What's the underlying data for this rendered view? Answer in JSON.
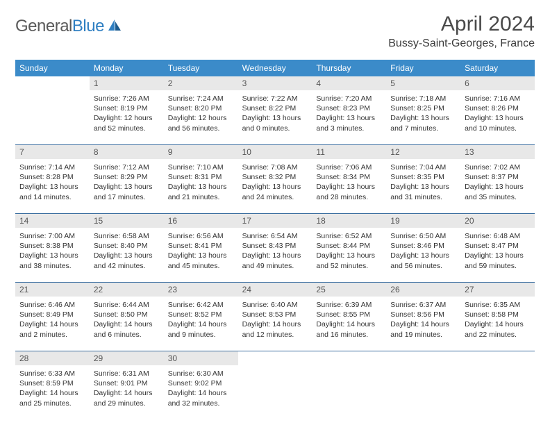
{
  "logo": {
    "text1": "General",
    "text2": "Blue"
  },
  "title": "April 2024",
  "location": "Bussy-Saint-Georges, France",
  "colors": {
    "header_bg": "#3b8bc9",
    "header_text": "#ffffff",
    "daynum_bg": "#e8e8e8",
    "week_border": "#3b6ea0",
    "logo_gray": "#5a5a5a",
    "logo_blue": "#2f7fc2"
  },
  "dayNames": [
    "Sunday",
    "Monday",
    "Tuesday",
    "Wednesday",
    "Thursday",
    "Friday",
    "Saturday"
  ],
  "weeks": [
    [
      {
        "day": "",
        "sunrise": "",
        "sunset": "",
        "daylight": ""
      },
      {
        "day": "1",
        "sunrise": "Sunrise: 7:26 AM",
        "sunset": "Sunset: 8:19 PM",
        "daylight": "Daylight: 12 hours and 52 minutes."
      },
      {
        "day": "2",
        "sunrise": "Sunrise: 7:24 AM",
        "sunset": "Sunset: 8:20 PM",
        "daylight": "Daylight: 12 hours and 56 minutes."
      },
      {
        "day": "3",
        "sunrise": "Sunrise: 7:22 AM",
        "sunset": "Sunset: 8:22 PM",
        "daylight": "Daylight: 13 hours and 0 minutes."
      },
      {
        "day": "4",
        "sunrise": "Sunrise: 7:20 AM",
        "sunset": "Sunset: 8:23 PM",
        "daylight": "Daylight: 13 hours and 3 minutes."
      },
      {
        "day": "5",
        "sunrise": "Sunrise: 7:18 AM",
        "sunset": "Sunset: 8:25 PM",
        "daylight": "Daylight: 13 hours and 7 minutes."
      },
      {
        "day": "6",
        "sunrise": "Sunrise: 7:16 AM",
        "sunset": "Sunset: 8:26 PM",
        "daylight": "Daylight: 13 hours and 10 minutes."
      }
    ],
    [
      {
        "day": "7",
        "sunrise": "Sunrise: 7:14 AM",
        "sunset": "Sunset: 8:28 PM",
        "daylight": "Daylight: 13 hours and 14 minutes."
      },
      {
        "day": "8",
        "sunrise": "Sunrise: 7:12 AM",
        "sunset": "Sunset: 8:29 PM",
        "daylight": "Daylight: 13 hours and 17 minutes."
      },
      {
        "day": "9",
        "sunrise": "Sunrise: 7:10 AM",
        "sunset": "Sunset: 8:31 PM",
        "daylight": "Daylight: 13 hours and 21 minutes."
      },
      {
        "day": "10",
        "sunrise": "Sunrise: 7:08 AM",
        "sunset": "Sunset: 8:32 PM",
        "daylight": "Daylight: 13 hours and 24 minutes."
      },
      {
        "day": "11",
        "sunrise": "Sunrise: 7:06 AM",
        "sunset": "Sunset: 8:34 PM",
        "daylight": "Daylight: 13 hours and 28 minutes."
      },
      {
        "day": "12",
        "sunrise": "Sunrise: 7:04 AM",
        "sunset": "Sunset: 8:35 PM",
        "daylight": "Daylight: 13 hours and 31 minutes."
      },
      {
        "day": "13",
        "sunrise": "Sunrise: 7:02 AM",
        "sunset": "Sunset: 8:37 PM",
        "daylight": "Daylight: 13 hours and 35 minutes."
      }
    ],
    [
      {
        "day": "14",
        "sunrise": "Sunrise: 7:00 AM",
        "sunset": "Sunset: 8:38 PM",
        "daylight": "Daylight: 13 hours and 38 minutes."
      },
      {
        "day": "15",
        "sunrise": "Sunrise: 6:58 AM",
        "sunset": "Sunset: 8:40 PM",
        "daylight": "Daylight: 13 hours and 42 minutes."
      },
      {
        "day": "16",
        "sunrise": "Sunrise: 6:56 AM",
        "sunset": "Sunset: 8:41 PM",
        "daylight": "Daylight: 13 hours and 45 minutes."
      },
      {
        "day": "17",
        "sunrise": "Sunrise: 6:54 AM",
        "sunset": "Sunset: 8:43 PM",
        "daylight": "Daylight: 13 hours and 49 minutes."
      },
      {
        "day": "18",
        "sunrise": "Sunrise: 6:52 AM",
        "sunset": "Sunset: 8:44 PM",
        "daylight": "Daylight: 13 hours and 52 minutes."
      },
      {
        "day": "19",
        "sunrise": "Sunrise: 6:50 AM",
        "sunset": "Sunset: 8:46 PM",
        "daylight": "Daylight: 13 hours and 56 minutes."
      },
      {
        "day": "20",
        "sunrise": "Sunrise: 6:48 AM",
        "sunset": "Sunset: 8:47 PM",
        "daylight": "Daylight: 13 hours and 59 minutes."
      }
    ],
    [
      {
        "day": "21",
        "sunrise": "Sunrise: 6:46 AM",
        "sunset": "Sunset: 8:49 PM",
        "daylight": "Daylight: 14 hours and 2 minutes."
      },
      {
        "day": "22",
        "sunrise": "Sunrise: 6:44 AM",
        "sunset": "Sunset: 8:50 PM",
        "daylight": "Daylight: 14 hours and 6 minutes."
      },
      {
        "day": "23",
        "sunrise": "Sunrise: 6:42 AM",
        "sunset": "Sunset: 8:52 PM",
        "daylight": "Daylight: 14 hours and 9 minutes."
      },
      {
        "day": "24",
        "sunrise": "Sunrise: 6:40 AM",
        "sunset": "Sunset: 8:53 PM",
        "daylight": "Daylight: 14 hours and 12 minutes."
      },
      {
        "day": "25",
        "sunrise": "Sunrise: 6:39 AM",
        "sunset": "Sunset: 8:55 PM",
        "daylight": "Daylight: 14 hours and 16 minutes."
      },
      {
        "day": "26",
        "sunrise": "Sunrise: 6:37 AM",
        "sunset": "Sunset: 8:56 PM",
        "daylight": "Daylight: 14 hours and 19 minutes."
      },
      {
        "day": "27",
        "sunrise": "Sunrise: 6:35 AM",
        "sunset": "Sunset: 8:58 PM",
        "daylight": "Daylight: 14 hours and 22 minutes."
      }
    ],
    [
      {
        "day": "28",
        "sunrise": "Sunrise: 6:33 AM",
        "sunset": "Sunset: 8:59 PM",
        "daylight": "Daylight: 14 hours and 25 minutes."
      },
      {
        "day": "29",
        "sunrise": "Sunrise: 6:31 AM",
        "sunset": "Sunset: 9:01 PM",
        "daylight": "Daylight: 14 hours and 29 minutes."
      },
      {
        "day": "30",
        "sunrise": "Sunrise: 6:30 AM",
        "sunset": "Sunset: 9:02 PM",
        "daylight": "Daylight: 14 hours and 32 minutes."
      },
      {
        "day": "",
        "sunrise": "",
        "sunset": "",
        "daylight": ""
      },
      {
        "day": "",
        "sunrise": "",
        "sunset": "",
        "daylight": ""
      },
      {
        "day": "",
        "sunrise": "",
        "sunset": "",
        "daylight": ""
      },
      {
        "day": "",
        "sunrise": "",
        "sunset": "",
        "daylight": ""
      }
    ]
  ]
}
